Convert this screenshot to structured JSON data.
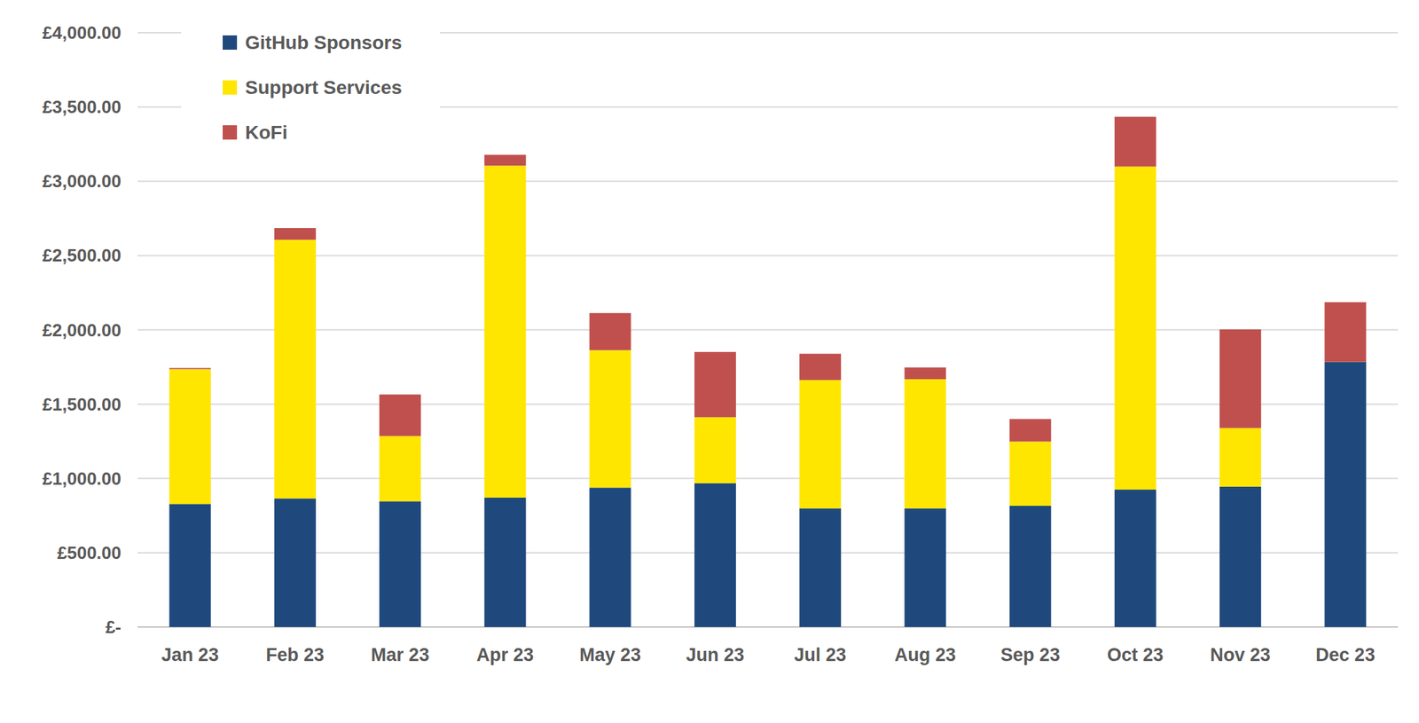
{
  "chart_data": {
    "type": "bar",
    "stacked": true,
    "grid": true,
    "legend": "upper left",
    "categories": [
      "Jan 23",
      "Feb 23",
      "Mar 23",
      "Apr 23",
      "May 23",
      "Jun 23",
      "Jul 23",
      "Aug 23",
      "Sep 23",
      "Oct 23",
      "Nov 23",
      "Dec 23"
    ],
    "series": [
      {
        "name": "GitHub Sponsors",
        "color": "#1f497d",
        "values": [
          828,
          865,
          846,
          871,
          938,
          968,
          798,
          798,
          816,
          925,
          944,
          1784
        ]
      },
      {
        "name": "Support Services",
        "color": "#ffe600",
        "values": [
          907,
          1741,
          439,
          2234,
          925,
          444,
          864,
          870,
          432,
          2174,
          395,
          0
        ]
      },
      {
        "name": "KoFi",
        "color": "#c0504d",
        "values": [
          8,
          79,
          280,
          73,
          250,
          439,
          177,
          79,
          152,
          335,
          664,
          402
        ]
      }
    ],
    "ylim": [
      0,
      4000
    ],
    "yticks": [
      {
        "value": 0,
        "label": "£-"
      },
      {
        "value": 500,
        "label": "£500.00"
      },
      {
        "value": 1000,
        "label": "£1,000.00"
      },
      {
        "value": 1500,
        "label": "£1,500.00"
      },
      {
        "value": 2000,
        "label": "£2,000.00"
      },
      {
        "value": 2500,
        "label": "£2,500.00"
      },
      {
        "value": 3000,
        "label": "£3,000.00"
      },
      {
        "value": 3500,
        "label": "£3,500.00"
      },
      {
        "value": 4000,
        "label": "£4,000.00"
      }
    ]
  }
}
